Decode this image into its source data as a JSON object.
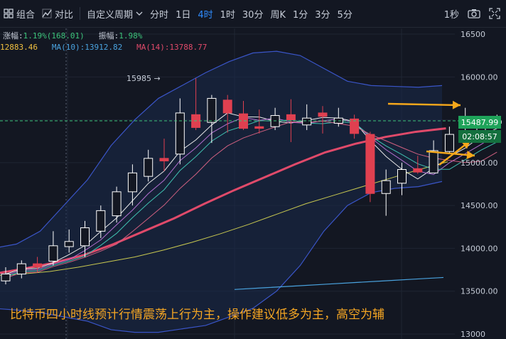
{
  "toolbar": {
    "combine_label": "组合",
    "compare_label": "对比",
    "custom_period_label": "自定义周期",
    "intervals": [
      "分时",
      "1日",
      "4时",
      "1时",
      "30分",
      "周K",
      "1分",
      "3分",
      "5分"
    ],
    "active_interval": "4时",
    "refresh_label": "1秒",
    "icons": [
      "grid-icon",
      "compare-icon",
      "chevron-down-icon",
      "camera-icon",
      "fullscreen-icon",
      "settings-icon"
    ]
  },
  "info_line1": {
    "change_label": "涨幅:",
    "change_value": "1.19%(168.01)",
    "amplitude_label": "振幅:",
    "amplitude_value": "1.98%"
  },
  "info_line2": {
    "ma_partial": "12883.46",
    "ma10_label": "MA(10):",
    "ma10_value": "13912.82",
    "ma14_label": "MA(14):",
    "ma14_value": "13788.77"
  },
  "colors": {
    "background": "#131722",
    "bullish": "#ffffff",
    "bearish": "#e04050",
    "current_price_tag": "#1fa35a",
    "countdown_tag": "#14703e",
    "caption": "#f5a623",
    "arrow": "#f7a81b",
    "bollinger_band": "#3a55c8",
    "ma10": "#4aa3df",
    "ma14": "#e04a6a"
  },
  "chart_data": {
    "type": "candlestick",
    "ylim": [
      13000,
      16500
    ],
    "y_ticks": [
      "16500",
      "16000.00",
      "15500.00",
      "15000.00",
      "14500.00",
      "14000.00",
      "13500.00",
      "13000"
    ],
    "high_marker_label": "15985 →",
    "high_marker_value": 15985,
    "current_price": "15487.99",
    "countdown": "02:08:57",
    "candles": [
      {
        "o": 13620,
        "c": 13700,
        "h": 13780,
        "l": 13580
      },
      {
        "o": 13700,
        "c": 13820,
        "h": 13860,
        "l": 13650
      },
      {
        "o": 13820,
        "c": 13780,
        "h": 13900,
        "l": 13720
      },
      {
        "o": 13850,
        "c": 14030,
        "h": 14200,
        "l": 13800
      },
      {
        "o": 14020,
        "c": 14080,
        "h": 14220,
        "l": 13950
      },
      {
        "o": 14030,
        "c": 14240,
        "h": 14320,
        "l": 13900
      },
      {
        "o": 14200,
        "c": 14440,
        "h": 14500,
        "l": 14120
      },
      {
        "o": 14380,
        "c": 14660,
        "h": 14720,
        "l": 14300
      },
      {
        "o": 14660,
        "c": 14880,
        "h": 14980,
        "l": 14500
      },
      {
        "o": 14840,
        "c": 15050,
        "h": 15150,
        "l": 14780
      },
      {
        "o": 15050,
        "c": 15020,
        "h": 15280,
        "l": 14900
      },
      {
        "o": 15100,
        "c": 15580,
        "h": 15750,
        "l": 14980
      },
      {
        "o": 15560,
        "c": 15410,
        "h": 15985,
        "l": 15380
      },
      {
        "o": 15470,
        "c": 15750,
        "h": 15790,
        "l": 15230
      },
      {
        "o": 15730,
        "c": 15580,
        "h": 15790,
        "l": 15350
      },
      {
        "o": 15570,
        "c": 15400,
        "h": 15720,
        "l": 15380
      },
      {
        "o": 15420,
        "c": 15400,
        "h": 15620,
        "l": 15340
      },
      {
        "o": 15420,
        "c": 15550,
        "h": 15640,
        "l": 15380
      },
      {
        "o": 15560,
        "c": 15500,
        "h": 15740,
        "l": 15240
      },
      {
        "o": 15440,
        "c": 15520,
        "h": 15680,
        "l": 15380
      },
      {
        "o": 15580,
        "c": 15540,
        "h": 15660,
        "l": 15340
      },
      {
        "o": 15460,
        "c": 15520,
        "h": 15640,
        "l": 15420
      },
      {
        "o": 15510,
        "c": 15340,
        "h": 15560,
        "l": 15280
      },
      {
        "o": 15330,
        "c": 14640,
        "h": 15360,
        "l": 14540
      },
      {
        "o": 14640,
        "c": 14790,
        "h": 14920,
        "l": 14380
      },
      {
        "o": 14760,
        "c": 14920,
        "h": 15000,
        "l": 14620
      },
      {
        "o": 14930,
        "c": 14890,
        "h": 15080,
        "l": 14870
      },
      {
        "o": 14880,
        "c": 15140,
        "h": 15260,
        "l": 14880
      },
      {
        "o": 15130,
        "c": 15330,
        "h": 15420,
        "l": 15100
      },
      {
        "o": 15320,
        "c": 15320,
        "h": 15640,
        "l": 15280
      },
      {
        "o": 15320,
        "c": 15460,
        "h": 15500,
        "l": 15300
      },
      {
        "o": 15460,
        "c": 15488,
        "h": 15560,
        "l": 15420
      }
    ],
    "bollinger_upper": [
      14000,
      14050,
      14200,
      14500,
      14800,
      15200,
      15500,
      15750,
      15900,
      16050,
      16180,
      16280,
      16300,
      16250,
      16100,
      15950,
      15900,
      15890,
      15880,
      15900
    ],
    "bollinger_lower": [
      13300,
      13280,
      13250,
      13200,
      13150,
      13050,
      13020,
      13020,
      13060,
      13100,
      13200,
      13300,
      13500,
      13800,
      14200,
      14500,
      14650,
      14700,
      14720,
      14780
    ],
    "ma_lines": [
      {
        "name": "MA(10)",
        "color": "#4aa3df",
        "values": [
          13520,
          13540,
          13560,
          13580,
          13600,
          13620,
          13640,
          13660
        ]
      },
      {
        "name": "MA(14)",
        "color": "#e04a6a",
        "values": [
          13700,
          13760,
          13830,
          13920,
          14050,
          14200,
          14350,
          14520,
          14680,
          14830,
          14980,
          15120,
          15220,
          15300,
          15360,
          15400
        ]
      }
    ]
  },
  "caption": "比特币四小时线预计行情震荡上行为主，操作建议低多为主，高空为辅"
}
